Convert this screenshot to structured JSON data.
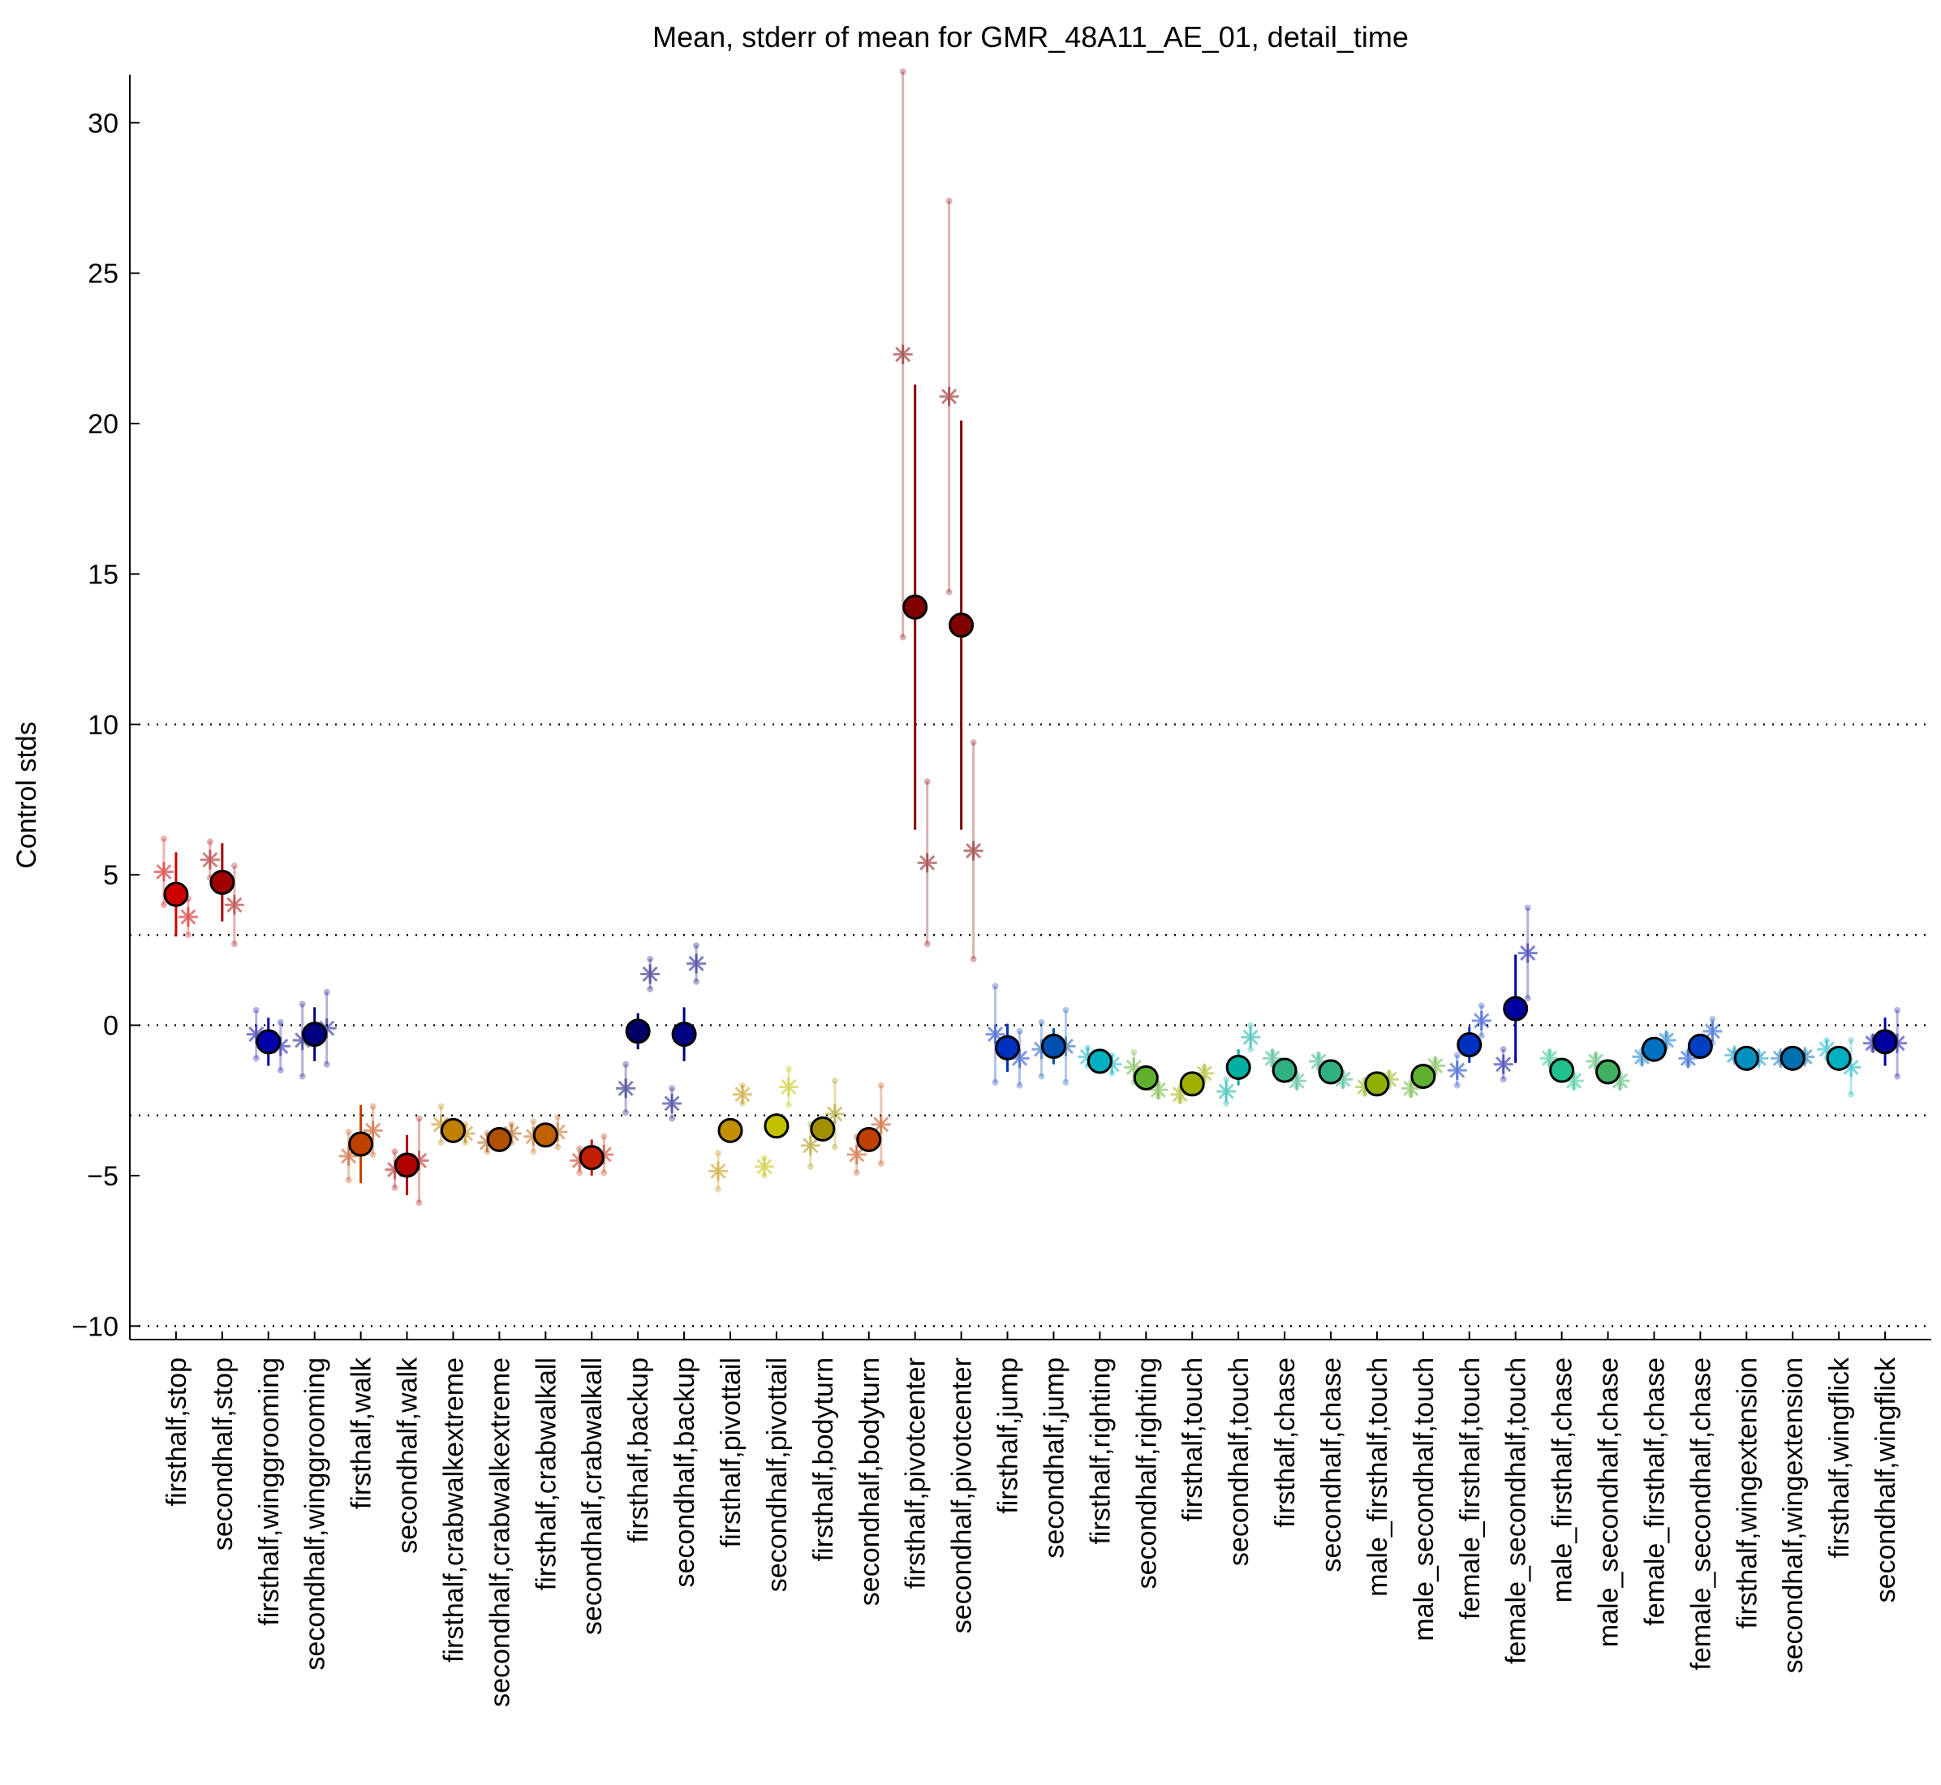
{
  "chart_data": {
    "type": "errorbar",
    "title": "Mean, stderr of mean for GMR_48A11_AE_01, detail_time",
    "y_label": "Control stds",
    "categories": [
      "firsthalf,stop",
      "secondhalf,stop",
      "firsthalf,winggrooming",
      "secondhalf,winggrooming",
      "firsthalf,walk",
      "secondhalf,walk",
      "firsthalf,crabwalkextreme",
      "secondhalf,crabwalkextreme",
      "firsthalf,crabwalkall",
      "secondhalf,crabwalkall",
      "firsthalf,backup",
      "secondhalf,backup",
      "firsthalf,pivottail",
      "secondhalf,pivottail",
      "firsthalf,bodyturn",
      "secondhalf,bodyturn",
      "firsthalf,pivotcenter",
      "secondhalf,pivotcenter",
      "firsthalf,jump",
      "secondhalf,jump",
      "firsthalf,righting",
      "secondhalf,righting",
      "firsthalf,touch",
      "secondhalf,touch",
      "firsthalf,chase",
      "secondhalf,chase",
      "male_firsthalf,touch",
      "male_secondhalf,touch",
      "female_firsthalf,touch",
      "female_secondhalf,touch",
      "male_firsthalf,chase",
      "male_secondhalf,chase",
      "female_firsthalf,chase",
      "female_secondhalf,chase",
      "firsthalf,wingextension",
      "secondhalf,wingextension",
      "firsthalf,wingflick",
      "secondhalf,wingflick"
    ],
    "colors": [
      "#cc0000",
      "#a00000",
      "#0000aa",
      "#000080",
      "#c04000",
      "#b00000",
      "#c08000",
      "#b05000",
      "#c06000",
      "#c02000",
      "#000066",
      "#000080",
      "#c09000",
      "#c0c000",
      "#a09000",
      "#c04000",
      "#800000",
      "#800000",
      "#0030c0",
      "#0050b0",
      "#00b0c0",
      "#60b030",
      "#a0b000",
      "#00b0a0",
      "#30b080",
      "#30b080",
      "#90b000",
      "#60b030",
      "#0030c0",
      "#0000a0",
      "#20c090",
      "#40b060",
      "#0070c0",
      "#0040c0",
      "#0090c0",
      "#0070b0",
      "#00b0c0",
      "#0000a0"
    ],
    "values": [
      4.35,
      4.75,
      -0.55,
      -0.3,
      -3.95,
      -4.65,
      -3.5,
      -3.8,
      -3.65,
      -4.4,
      -0.2,
      -0.3,
      -3.5,
      -3.35,
      -3.45,
      -3.8,
      13.9,
      13.3,
      -0.75,
      -0.7,
      -1.2,
      -1.75,
      -1.95,
      -1.4,
      -1.5,
      -1.55,
      -1.95,
      -1.7,
      -0.65,
      0.55,
      -1.5,
      -1.55,
      -0.8,
      -0.7,
      -1.1,
      -1.1,
      -1.1,
      -0.55
    ],
    "errors": [
      1.4,
      1.3,
      0.8,
      0.9,
      1.3,
      1.0,
      0.3,
      0.3,
      0.4,
      0.6,
      0.6,
      0.9,
      0.3,
      0.3,
      0.4,
      0.4,
      7.4,
      6.8,
      0.8,
      0.6,
      0.2,
      0.2,
      0.2,
      0.6,
      0.2,
      0.2,
      0.2,
      0.2,
      0.6,
      1.8,
      0.2,
      0.2,
      0.2,
      0.3,
      0.15,
      0.15,
      0.3,
      0.8
    ],
    "series": [
      {
        "values": [
          5.1,
          5.5,
          -0.3,
          -0.5,
          -4.35,
          -4.8,
          -3.3,
          -3.9,
          -3.7,
          -4.5,
          -2.1,
          -2.6,
          -4.85,
          -4.7,
          -4.0,
          -4.3,
          22.3,
          20.9,
          -0.3,
          -0.8,
          -1.05,
          -1.4,
          -2.3,
          -2.2,
          -1.1,
          -1.2,
          -2.05,
          -2.1,
          -1.5,
          -1.3,
          -1.1,
          -1.2,
          -1.05,
          -1.1,
          -1.0,
          -1.1,
          -0.8,
          -0.6
        ],
        "errors": [
          1.1,
          0.6,
          0.8,
          1.2,
          0.8,
          0.6,
          0.6,
          0.3,
          0.5,
          0.4,
          0.8,
          0.5,
          0.6,
          0.3,
          0.7,
          0.6,
          9.4,
          6.5,
          1.6,
          0.9,
          0.3,
          0.5,
          0.2,
          0.4,
          0.2,
          0.2,
          0.2,
          0.2,
          0.5,
          0.5,
          0.2,
          0.2,
          0.2,
          0.2,
          0.15,
          0.15,
          0.3,
          0.2
        ]
      },
      {
        "values": [
          3.6,
          4.0,
          -0.7,
          -0.1,
          -3.5,
          -4.5,
          -3.6,
          -3.6,
          -3.55,
          -4.3,
          1.7,
          2.05,
          -2.3,
          -2.05,
          -2.95,
          -3.3,
          5.4,
          5.8,
          -1.1,
          -0.7,
          -1.3,
          -2.15,
          -1.6,
          -0.4,
          -1.85,
          -1.8,
          -1.8,
          -1.35,
          0.15,
          2.4,
          -1.85,
          -1.85,
          -0.5,
          -0.2,
          -1.1,
          -1.05,
          -1.4,
          -0.6
        ],
        "errors": [
          0.6,
          1.3,
          0.8,
          1.2,
          0.8,
          1.4,
          0.3,
          0.3,
          0.5,
          0.6,
          0.5,
          0.6,
          0.3,
          0.6,
          1.1,
          1.3,
          2.7,
          3.6,
          0.9,
          1.2,
          0.3,
          0.2,
          0.2,
          0.4,
          0.2,
          0.2,
          0.2,
          0.2,
          0.5,
          1.5,
          0.2,
          0.2,
          0.2,
          0.4,
          0.15,
          0.15,
          0.9,
          1.1
        ]
      }
    ],
    "ylim": [
      -10.45,
      31.6
    ],
    "yticks": [
      {
        "value": -10,
        "label": "−10"
      },
      {
        "value": -5,
        "label": "−5"
      },
      0,
      5,
      10,
      15,
      20,
      25,
      30
    ],
    "hlines": [
      -10,
      -3,
      0,
      3,
      10
    ]
  }
}
